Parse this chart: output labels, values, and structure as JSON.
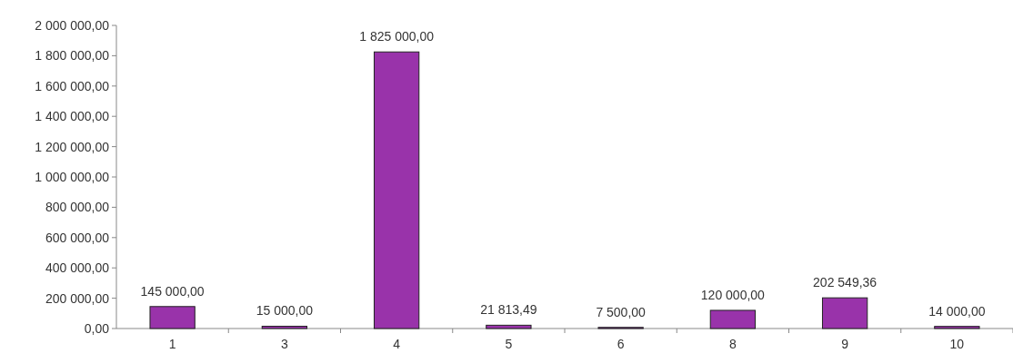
{
  "chart_data": {
    "type": "bar",
    "categories": [
      "1",
      "3",
      "4",
      "5",
      "6",
      "8",
      "9",
      "10"
    ],
    "values": [
      145000,
      15000,
      1825000,
      21813.49,
      7500,
      120000,
      202549.36,
      14000
    ],
    "value_labels": [
      "145 000,00",
      "15 000,00",
      "1 825 000,00",
      "21 813,49",
      "7 500,00",
      "120 000,00",
      "202 549,36",
      "14 000,00"
    ],
    "color": "#9933aa",
    "ylim": [
      0,
      2000000
    ],
    "yticks": [
      {
        "value": 0,
        "label": "0,00"
      },
      {
        "value": 200000,
        "label": "200 000,00"
      },
      {
        "value": 400000,
        "label": "400 000,00"
      },
      {
        "value": 600000,
        "label": "600 000,00"
      },
      {
        "value": 800000,
        "label": "800 000,00"
      },
      {
        "value": 1000000,
        "label": "1 000 000,00"
      },
      {
        "value": 1200000,
        "label": "1 200 000,00"
      },
      {
        "value": 1400000,
        "label": "1 400 000,00"
      },
      {
        "value": 1600000,
        "label": "1 600 000,00"
      },
      {
        "value": 1800000,
        "label": "1 800 000,00"
      },
      {
        "value": 2000000,
        "label": "2 000 000,00"
      }
    ],
    "grid": false
  }
}
